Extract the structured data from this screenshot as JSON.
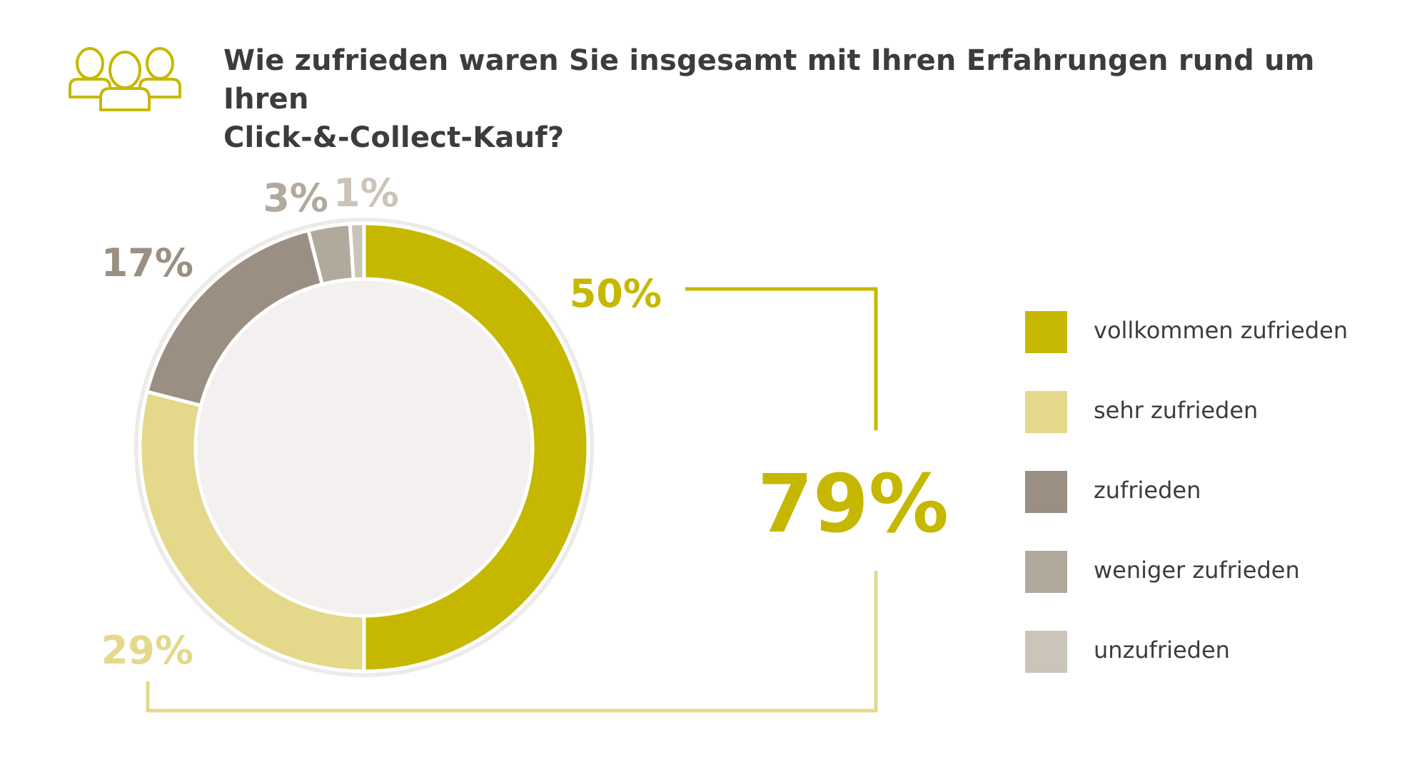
{
  "title_lines": [
    "Wie zufrieden waren Sie insgesamt mit Ihren Erfahrungen rund um Ihren",
    "Click-&-Collect-Kauf?"
  ],
  "icon": "people-group-icon",
  "colors": {
    "vollkommen": "#c6b800",
    "sehr": "#e4d98a",
    "zufrieden": "#9a8f82",
    "weniger": "#b2a99d",
    "unzufrieden": "#cbc4b8",
    "center": "#f3f0ef",
    "ring": "#eeeae8"
  },
  "chart_data": {
    "type": "donut",
    "categories": [
      "vollkommen zufrieden",
      "sehr zufrieden",
      "zufrieden",
      "weniger zufrieden",
      "unzufrieden"
    ],
    "values": [
      50,
      29,
      17,
      3,
      1
    ],
    "unit": "%",
    "data_labels": [
      "50%",
      "29%",
      "17%",
      "3%",
      "1%"
    ],
    "combined_label": "79%",
    "combined_note": "vollkommen zufrieden + sehr zufrieden",
    "legend_position": "right"
  }
}
